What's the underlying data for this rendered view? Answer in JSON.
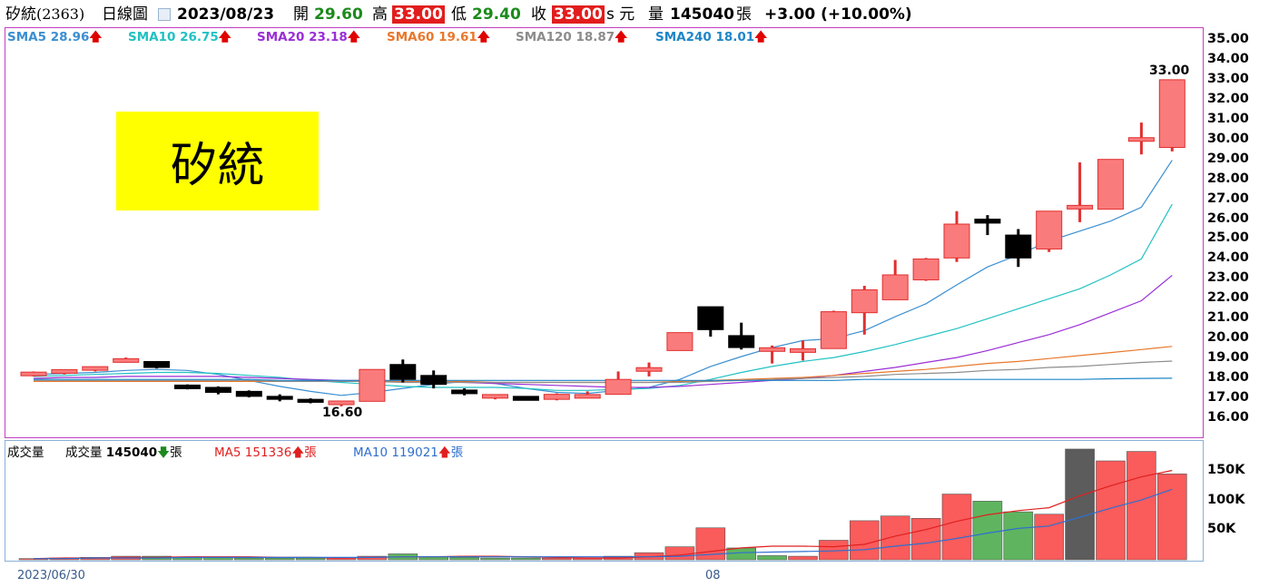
{
  "header": {
    "stock_name": "矽統",
    "stock_code": "(2363)",
    "period": "日線圖",
    "date": "2023/08/23",
    "open_label": "開",
    "open_value": "29.60",
    "high_label": "高",
    "high_value": "33.00",
    "low_label": "低",
    "low_value": "29.40",
    "close_label": "收",
    "close_value": "33.00",
    "close_suffix": "s 元",
    "volume_label": "量",
    "volume_value": "145040",
    "volume_unit": "張",
    "change": "+3.00 (+10.00%)"
  },
  "sma_legend": [
    {
      "label": "SMA5",
      "value": "28.96",
      "arrow": "🡅",
      "color": "#3b8fd1"
    },
    {
      "label": "SMA10",
      "value": "26.75",
      "arrow": "🡅",
      "color": "#22c1c3"
    },
    {
      "label": "SMA20",
      "value": "23.18",
      "arrow": "🡅",
      "color": "#9a2fd6"
    },
    {
      "label": "SMA60",
      "value": "19.61",
      "arrow": "🡅",
      "color": "#e8782c"
    },
    {
      "label": "SMA120",
      "value": "18.87",
      "arrow": "🡅",
      "color": "#8c8c8c"
    },
    {
      "label": "SMA240",
      "value": "18.01",
      "arrow": "🡅",
      "color": "#1f86c7"
    }
  ],
  "stock_label": "矽統",
  "annotations": {
    "low": "16.60",
    "high": "33.00"
  },
  "volume_legend": {
    "title": "成交量",
    "vol_label": "成交量",
    "vol_value": "145040",
    "vol_arrow": "🡇",
    "unit": "張",
    "ma5_label": "MA5",
    "ma5_value": "151336",
    "ma10_label": "MA10",
    "ma10_value": "119021"
  },
  "date_labels": [
    "2023/06/30",
    "08"
  ],
  "colors": {
    "up_candle": "#fa7b7b",
    "up_candle_border": "#e03030",
    "down_candle": "#000000",
    "vol_up": "#fa5b5b",
    "vol_down": "#5fb55f",
    "vol_flat": "#5c5c5c",
    "ma5_vol": "#e02020",
    "ma10_vol": "#2f6fd0"
  },
  "chart_data": {
    "type": "candlestick",
    "title": "矽統(2363) 日線圖",
    "x_labels": [
      "2023/06/30",
      "08"
    ],
    "price_ylim": [
      15.6,
      35.4
    ],
    "price_ticks": [
      "35.00",
      "34.00",
      "33.00",
      "32.00",
      "31.00",
      "30.00",
      "29.00",
      "28.00",
      "27.00",
      "26.00",
      "25.00",
      "24.00",
      "23.00",
      "22.00",
      "21.00",
      "20.00",
      "19.00",
      "18.00",
      "17.00",
      "16.00"
    ],
    "candles": [
      {
        "o": 18.2,
        "h": 18.35,
        "l": 18.1,
        "c": 18.25
      },
      {
        "o": 18.3,
        "h": 18.45,
        "l": 18.2,
        "c": 18.4
      },
      {
        "o": 18.45,
        "h": 18.6,
        "l": 18.35,
        "c": 18.55
      },
      {
        "o": 18.9,
        "h": 19.05,
        "l": 18.8,
        "c": 18.9
      },
      {
        "o": 18.85,
        "h": 18.85,
        "l": 18.5,
        "c": 18.55
      },
      {
        "o": 17.6,
        "h": 17.7,
        "l": 17.45,
        "c": 17.55
      },
      {
        "o": 17.55,
        "h": 17.6,
        "l": 17.2,
        "c": 17.3
      },
      {
        "o": 17.35,
        "h": 17.4,
        "l": 17.05,
        "c": 17.1
      },
      {
        "o": 17.1,
        "h": 17.2,
        "l": 16.85,
        "c": 16.95
      },
      {
        "o": 16.95,
        "h": 17.0,
        "l": 16.75,
        "c": 16.8
      },
      {
        "o": 16.75,
        "h": 16.85,
        "l": 16.6,
        "c": 16.8
      },
      {
        "o": 16.85,
        "h": 18.45,
        "l": 16.85,
        "c": 18.45
      },
      {
        "o": 18.7,
        "h": 18.95,
        "l": 17.8,
        "c": 17.95
      },
      {
        "o": 18.15,
        "h": 18.4,
        "l": 17.5,
        "c": 17.7
      },
      {
        "o": 17.35,
        "h": 17.5,
        "l": 17.15,
        "c": 17.3
      },
      {
        "o": 17.05,
        "h": 17.2,
        "l": 16.95,
        "c": 17.15
      },
      {
        "o": 17.1,
        "h": 17.1,
        "l": 16.9,
        "c": 16.9
      },
      {
        "o": 16.95,
        "h": 17.25,
        "l": 16.9,
        "c": 17.2
      },
      {
        "o": 17.05,
        "h": 17.35,
        "l": 17.0,
        "c": 17.15
      },
      {
        "o": 17.2,
        "h": 18.35,
        "l": 17.2,
        "c": 17.95
      },
      {
        "o": 18.4,
        "h": 18.8,
        "l": 18.1,
        "c": 18.5
      },
      {
        "o": 19.4,
        "h": 20.3,
        "l": 19.4,
        "c": 20.3
      },
      {
        "o": 21.6,
        "h": 21.6,
        "l": 20.1,
        "c": 20.45
      },
      {
        "o": 20.15,
        "h": 20.8,
        "l": 19.45,
        "c": 19.55
      },
      {
        "o": 19.45,
        "h": 19.65,
        "l": 18.75,
        "c": 19.45
      },
      {
        "o": 19.35,
        "h": 19.9,
        "l": 18.9,
        "c": 19.45
      },
      {
        "o": 19.5,
        "h": 21.4,
        "l": 19.5,
        "c": 21.35
      },
      {
        "o": 21.3,
        "h": 22.65,
        "l": 20.2,
        "c": 22.45
      },
      {
        "o": 21.95,
        "h": 23.95,
        "l": 21.95,
        "c": 23.2
      },
      {
        "o": 22.95,
        "h": 24.05,
        "l": 22.9,
        "c": 24.0
      },
      {
        "o": 24.05,
        "h": 26.4,
        "l": 23.85,
        "c": 25.75
      },
      {
        "o": 26.0,
        "h": 26.2,
        "l": 25.2,
        "c": 25.8
      },
      {
        "o": 25.2,
        "h": 25.5,
        "l": 23.6,
        "c": 24.05
      },
      {
        "o": 24.5,
        "h": 26.4,
        "l": 24.35,
        "c": 26.4
      },
      {
        "o": 26.6,
        "h": 28.85,
        "l": 25.85,
        "c": 26.6
      },
      {
        "o": 26.5,
        "h": 29.0,
        "l": 26.5,
        "c": 29.0
      },
      {
        "o": 30.0,
        "h": 30.85,
        "l": 29.25,
        "c": 30.0
      },
      {
        "o": 29.6,
        "h": 33.0,
        "l": 29.4,
        "c": 33.0
      }
    ],
    "sma": {
      "SMA5": [
        18.2,
        18.25,
        18.3,
        18.4,
        18.45,
        18.4,
        18.2,
        17.9,
        17.6,
        17.35,
        17.15,
        17.3,
        17.5,
        17.7,
        17.85,
        17.75,
        17.5,
        17.3,
        17.25,
        17.4,
        17.55,
        17.95,
        18.6,
        19.1,
        19.55,
        19.9,
        20.0,
        20.4,
        21.1,
        21.75,
        22.7,
        23.6,
        24.2,
        24.9,
        25.4,
        25.9,
        26.6,
        28.96
      ],
      "SMA10": [
        18.1,
        18.15,
        18.2,
        18.25,
        18.3,
        18.3,
        18.25,
        18.15,
        18.05,
        17.9,
        17.8,
        17.7,
        17.6,
        17.55,
        17.55,
        17.55,
        17.5,
        17.4,
        17.4,
        17.45,
        17.5,
        17.65,
        17.95,
        18.3,
        18.6,
        18.85,
        19.05,
        19.35,
        19.7,
        20.1,
        20.5,
        21.0,
        21.5,
        22.0,
        22.5,
        23.2,
        24.0,
        26.75
      ],
      "SMA20": [
        18.0,
        18.05,
        18.05,
        18.1,
        18.1,
        18.1,
        18.1,
        18.05,
        18.0,
        17.95,
        17.9,
        17.9,
        17.85,
        17.85,
        17.8,
        17.75,
        17.7,
        17.65,
        17.6,
        17.55,
        17.55,
        17.6,
        17.7,
        17.8,
        17.9,
        18.0,
        18.15,
        18.35,
        18.55,
        18.8,
        19.05,
        19.4,
        19.8,
        20.2,
        20.7,
        21.3,
        21.9,
        23.18
      ],
      "SMA60": [
        17.85,
        17.85,
        17.85,
        17.85,
        17.85,
        17.85,
        17.85,
        17.85,
        17.85,
        17.85,
        17.85,
        17.85,
        17.85,
        17.85,
        17.85,
        17.8,
        17.8,
        17.8,
        17.8,
        17.8,
        17.8,
        17.85,
        17.9,
        17.95,
        18.0,
        18.05,
        18.15,
        18.25,
        18.35,
        18.45,
        18.6,
        18.75,
        18.85,
        19.0,
        19.15,
        19.3,
        19.45,
        19.61
      ],
      "SMA120": [
        17.9,
        17.9,
        17.9,
        17.9,
        17.9,
        17.9,
        17.9,
        17.9,
        17.85,
        17.85,
        17.85,
        17.85,
        17.8,
        17.8,
        17.8,
        17.8,
        17.8,
        17.8,
        17.8,
        17.8,
        17.8,
        17.8,
        17.85,
        17.9,
        17.95,
        18.0,
        18.05,
        18.1,
        18.2,
        18.25,
        18.3,
        18.4,
        18.45,
        18.55,
        18.6,
        18.7,
        18.8,
        18.87
      ],
      "SMA240": [
        17.95,
        17.95,
        17.95,
        17.95,
        17.95,
        17.95,
        17.95,
        17.95,
        17.9,
        17.9,
        17.9,
        17.9,
        17.9,
        17.9,
        17.9,
        17.9,
        17.9,
        17.9,
        17.9,
        17.9,
        17.9,
        17.9,
        17.9,
        17.9,
        17.9,
        17.9,
        17.9,
        17.95,
        17.95,
        17.95,
        17.95,
        17.95,
        17.95,
        17.95,
        17.95,
        17.98,
        18.0,
        18.01
      ]
    },
    "volume_ylim": [
      0,
      200
    ],
    "volume_ticks": [
      "150K",
      "100K",
      "50K"
    ],
    "volume": [
      {
        "v": 2,
        "dir": "up"
      },
      {
        "v": 3,
        "dir": "up"
      },
      {
        "v": 4,
        "dir": "up"
      },
      {
        "v": 6,
        "dir": "up"
      },
      {
        "v": 6,
        "dir": "down"
      },
      {
        "v": 5,
        "dir": "down"
      },
      {
        "v": 4,
        "dir": "down"
      },
      {
        "v": 3,
        "dir": "down"
      },
      {
        "v": 3,
        "dir": "down"
      },
      {
        "v": 3,
        "dir": "down"
      },
      {
        "v": 3,
        "dir": "up"
      },
      {
        "v": 6,
        "dir": "up"
      },
      {
        "v": 10,
        "dir": "down"
      },
      {
        "v": 5,
        "dir": "down"
      },
      {
        "v": 4,
        "dir": "down"
      },
      {
        "v": 3,
        "dir": "down"
      },
      {
        "v": 3,
        "dir": "down"
      },
      {
        "v": 3,
        "dir": "up"
      },
      {
        "v": 3,
        "dir": "up"
      },
      {
        "v": 6,
        "dir": "up"
      },
      {
        "v": 12,
        "dir": "up"
      },
      {
        "v": 22,
        "dir": "up"
      },
      {
        "v": 54,
        "dir": "up"
      },
      {
        "v": 20,
        "dir": "down"
      },
      {
        "v": 7,
        "dir": "down"
      },
      {
        "v": 6,
        "dir": "up"
      },
      {
        "v": 33,
        "dir": "up"
      },
      {
        "v": 66,
        "dir": "up"
      },
      {
        "v": 74,
        "dir": "up"
      },
      {
        "v": 70,
        "dir": "up"
      },
      {
        "v": 111,
        "dir": "up"
      },
      {
        "v": 99,
        "dir": "down"
      },
      {
        "v": 81,
        "dir": "down"
      },
      {
        "v": 77,
        "dir": "up"
      },
      {
        "v": 187,
        "dir": "flat"
      },
      {
        "v": 167,
        "dir": "up"
      },
      {
        "v": 183,
        "dir": "up"
      },
      {
        "v": 145,
        "dir": "up"
      }
    ],
    "vol_ma5": [
      2,
      3,
      3,
      4,
      4,
      5,
      5,
      5,
      4,
      4,
      3,
      4,
      5,
      5,
      6,
      6,
      5,
      4,
      3,
      3,
      5,
      8,
      14,
      20,
      23,
      23,
      22,
      26,
      40,
      51,
      65,
      76,
      83,
      88,
      108,
      125,
      140,
      151
    ],
    "vol_ma10": [
      2,
      2,
      3,
      3,
      3,
      4,
      4,
      4,
      4,
      4,
      4,
      4,
      5,
      5,
      5,
      5,
      5,
      5,
      5,
      5,
      5,
      6,
      9,
      12,
      13,
      14,
      15,
      17,
      23,
      28,
      36,
      45,
      53,
      57,
      72,
      87,
      101,
      119
    ]
  }
}
